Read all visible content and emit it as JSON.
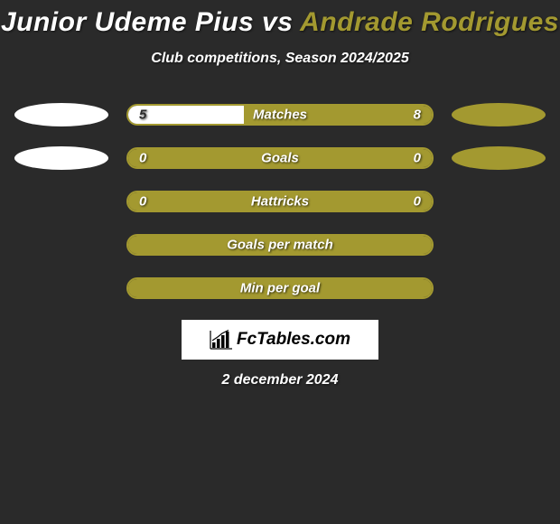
{
  "title": {
    "player1": "Junior Udeme Pius",
    "vs": "vs",
    "player2": "Andrade Rodrigues"
  },
  "subtitle": "Club competitions, Season 2024/2025",
  "colors": {
    "background": "#2a2a2a",
    "player1_color": "#ffffff",
    "player2_color": "#a39930",
    "bar_border": "#a39930",
    "text": "#ffffff"
  },
  "stats": [
    {
      "label": "Matches",
      "left_value": "5",
      "right_value": "8",
      "left_pct": 38,
      "right_pct": 62,
      "show_ovals": true,
      "show_values": true
    },
    {
      "label": "Goals",
      "left_value": "0",
      "right_value": "0",
      "left_pct": 0,
      "right_pct": 100,
      "show_ovals": true,
      "show_values": true
    },
    {
      "label": "Hattricks",
      "left_value": "0",
      "right_value": "0",
      "left_pct": 0,
      "right_pct": 100,
      "show_ovals": false,
      "show_values": true
    },
    {
      "label": "Goals per match",
      "left_value": "",
      "right_value": "",
      "left_pct": 0,
      "right_pct": 100,
      "show_ovals": false,
      "show_values": false
    },
    {
      "label": "Min per goal",
      "left_value": "",
      "right_value": "",
      "left_pct": 0,
      "right_pct": 100,
      "show_ovals": false,
      "show_values": false
    }
  ],
  "logo": {
    "text": "FcTables.com"
  },
  "date": "2 december 2024"
}
